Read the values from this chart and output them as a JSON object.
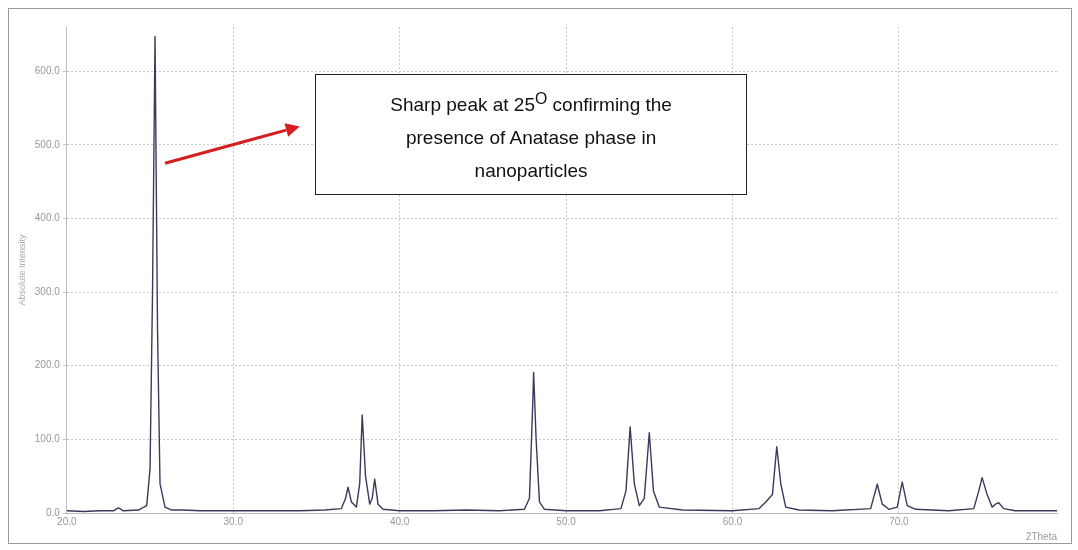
{
  "chart_data": {
    "type": "line",
    "xlabel": "2Theta",
    "ylabel": "Absolute Intensity",
    "annotations": [
      "Sharp peak at 25$^{O}$ confirming the presence of Anatase phase in nanoparticles"
    ],
    "xlim": [
      20,
      79.5
    ],
    "ylim": [
      0,
      660
    ],
    "xticks": [
      {
        "value": 20,
        "label": "20.0"
      },
      {
        "value": 30,
        "label": "30.0"
      },
      {
        "value": 40,
        "label": "40.0"
      },
      {
        "value": 50,
        "label": "50.0"
      },
      {
        "value": 60,
        "label": "60.0"
      },
      {
        "value": 70,
        "label": "70.0"
      }
    ],
    "yticks": [
      {
        "value": 0,
        "label": "0.0"
      },
      {
        "value": 100,
        "label": "100.0"
      },
      {
        "value": 200,
        "label": "200.0"
      },
      {
        "value": 300,
        "label": "300.0"
      },
      {
        "value": 400,
        "label": "400.0"
      },
      {
        "value": 500,
        "label": "500.0"
      },
      {
        "value": 600,
        "label": "600.0"
      }
    ],
    "grid": true,
    "marker": "none",
    "line_style": "solid",
    "series": [
      {
        "color": "#3a3a5c",
        "x": [
          20,
          21,
          22,
          22.8,
          23.1,
          23.4,
          24.3,
          24.8,
          25.0,
          25.15,
          25.3,
          25.45,
          25.6,
          25.9,
          26.3,
          27,
          28,
          30,
          32,
          34,
          35.5,
          36.5,
          36.75,
          36.9,
          37.1,
          37.4,
          37.6,
          37.75,
          37.95,
          38.2,
          38.35,
          38.5,
          38.7,
          39.0,
          40,
          42,
          44,
          46,
          47.5,
          47.8,
          48.0,
          48.05,
          48.2,
          48.4,
          48.7,
          50,
          52,
          53.3,
          53.6,
          53.85,
          54.1,
          54.4,
          54.7,
          55.0,
          55.25,
          55.6,
          57,
          60,
          61.6,
          62.0,
          62.2,
          62.4,
          62.66,
          62.9,
          63.2,
          64,
          66,
          68.3,
          68.7,
          69.0,
          69.4,
          69.9,
          70.2,
          70.5,
          71,
          73,
          74.5,
          74.8,
          75.0,
          75.3,
          75.6,
          75.8,
          76.0,
          76.3,
          77,
          79.5
        ],
        "values": [
          3,
          2,
          3,
          3,
          7,
          3,
          4,
          10,
          60,
          300,
          647,
          250,
          40,
          8,
          4,
          4,
          3,
          3,
          3,
          3,
          4,
          6,
          20,
          35,
          15,
          8,
          40,
          133,
          50,
          12,
          20,
          46,
          12,
          5,
          3,
          3,
          4,
          3,
          5,
          20,
          150,
          191,
          100,
          15,
          5,
          3,
          3,
          6,
          30,
          117,
          40,
          10,
          20,
          109,
          30,
          8,
          4,
          3,
          6,
          15,
          20,
          25,
          90,
          40,
          8,
          4,
          3,
          6,
          39,
          12,
          5,
          8,
          42,
          10,
          5,
          3,
          6,
          30,
          48,
          25,
          8,
          12,
          14,
          6,
          3,
          3
        ]
      }
    ]
  }
}
